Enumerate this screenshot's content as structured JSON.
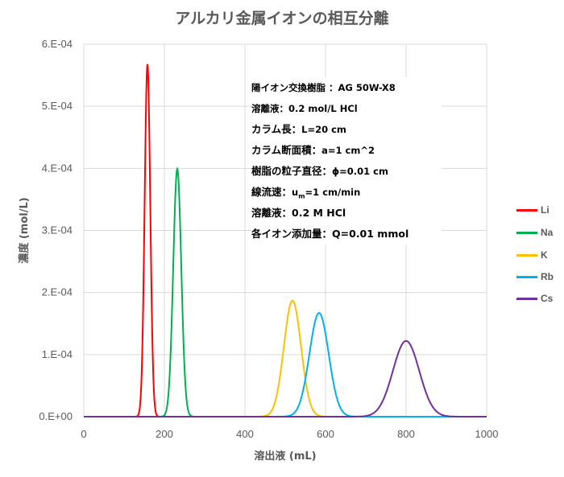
{
  "chart_data": {
    "type": "line",
    "title": "アルカリ金属イオンの相互分離",
    "xlabel": "溶出液 (mL)",
    "ylabel": "濃度 (mol/L)",
    "xlim": [
      0,
      1000
    ],
    "ylim": [
      0,
      0.0006
    ],
    "xticks": [
      "0",
      "200",
      "400",
      "600",
      "800",
      "1000"
    ],
    "xtick_values": [
      0,
      200,
      400,
      600,
      800,
      1000
    ],
    "yticks": [
      "0.E+00",
      "1.E-04",
      "2.E-04",
      "3.E-04",
      "4.E-04",
      "5.E-04",
      "6.E-04"
    ],
    "ytick_values": [
      0,
      0.0001,
      0.0002,
      0.0003,
      0.0004,
      0.0005,
      0.0006
    ],
    "grid": true,
    "legend_position": "right",
    "curve_shape": "gaussian",
    "series": [
      {
        "name": "Li",
        "color": "#FF0000",
        "peak_x": 158,
        "peak_y": 0.000568,
        "sigma": 7.0
      },
      {
        "name": "Na",
        "color": "#00B050",
        "peak_x": 232,
        "peak_y": 0.000399,
        "sigma": 10.0
      },
      {
        "name": "K",
        "color": "#FFC000",
        "peak_x": 518,
        "peak_y": 0.000187,
        "sigma": 21.3
      },
      {
        "name": "Rb",
        "color": "#00B0F0",
        "peak_x": 584,
        "peak_y": 0.000167,
        "sigma": 23.9
      },
      {
        "name": "Cs",
        "color": "#7030A0",
        "peak_x": 800,
        "peak_y": 0.000122,
        "sigma": 32.7
      }
    ],
    "annotations": [
      {
        "label": "陽イオン交換樹脂 ：",
        "value": "AG 50W-X8"
      },
      {
        "label": "溶離液：",
        "value": "0.2 mol/L HCl"
      },
      {
        "label": "カラム長：",
        "value": "L=20 cm"
      },
      {
        "label": "カラム断面積：",
        "value": "a=1 cm^2"
      },
      {
        "label": "樹脂の粒子直径：",
        "value": "ϕ=0.01 cm"
      },
      {
        "label": "線流速：",
        "value_pre": "u",
        "value_sub": "m",
        "value_post": "=1 cm/min"
      },
      {
        "label": "溶離液：",
        "value": "0.2 M HCl"
      },
      {
        "label": "各イオン添加量：",
        "value": "Q=0.01 mmol"
      }
    ]
  }
}
